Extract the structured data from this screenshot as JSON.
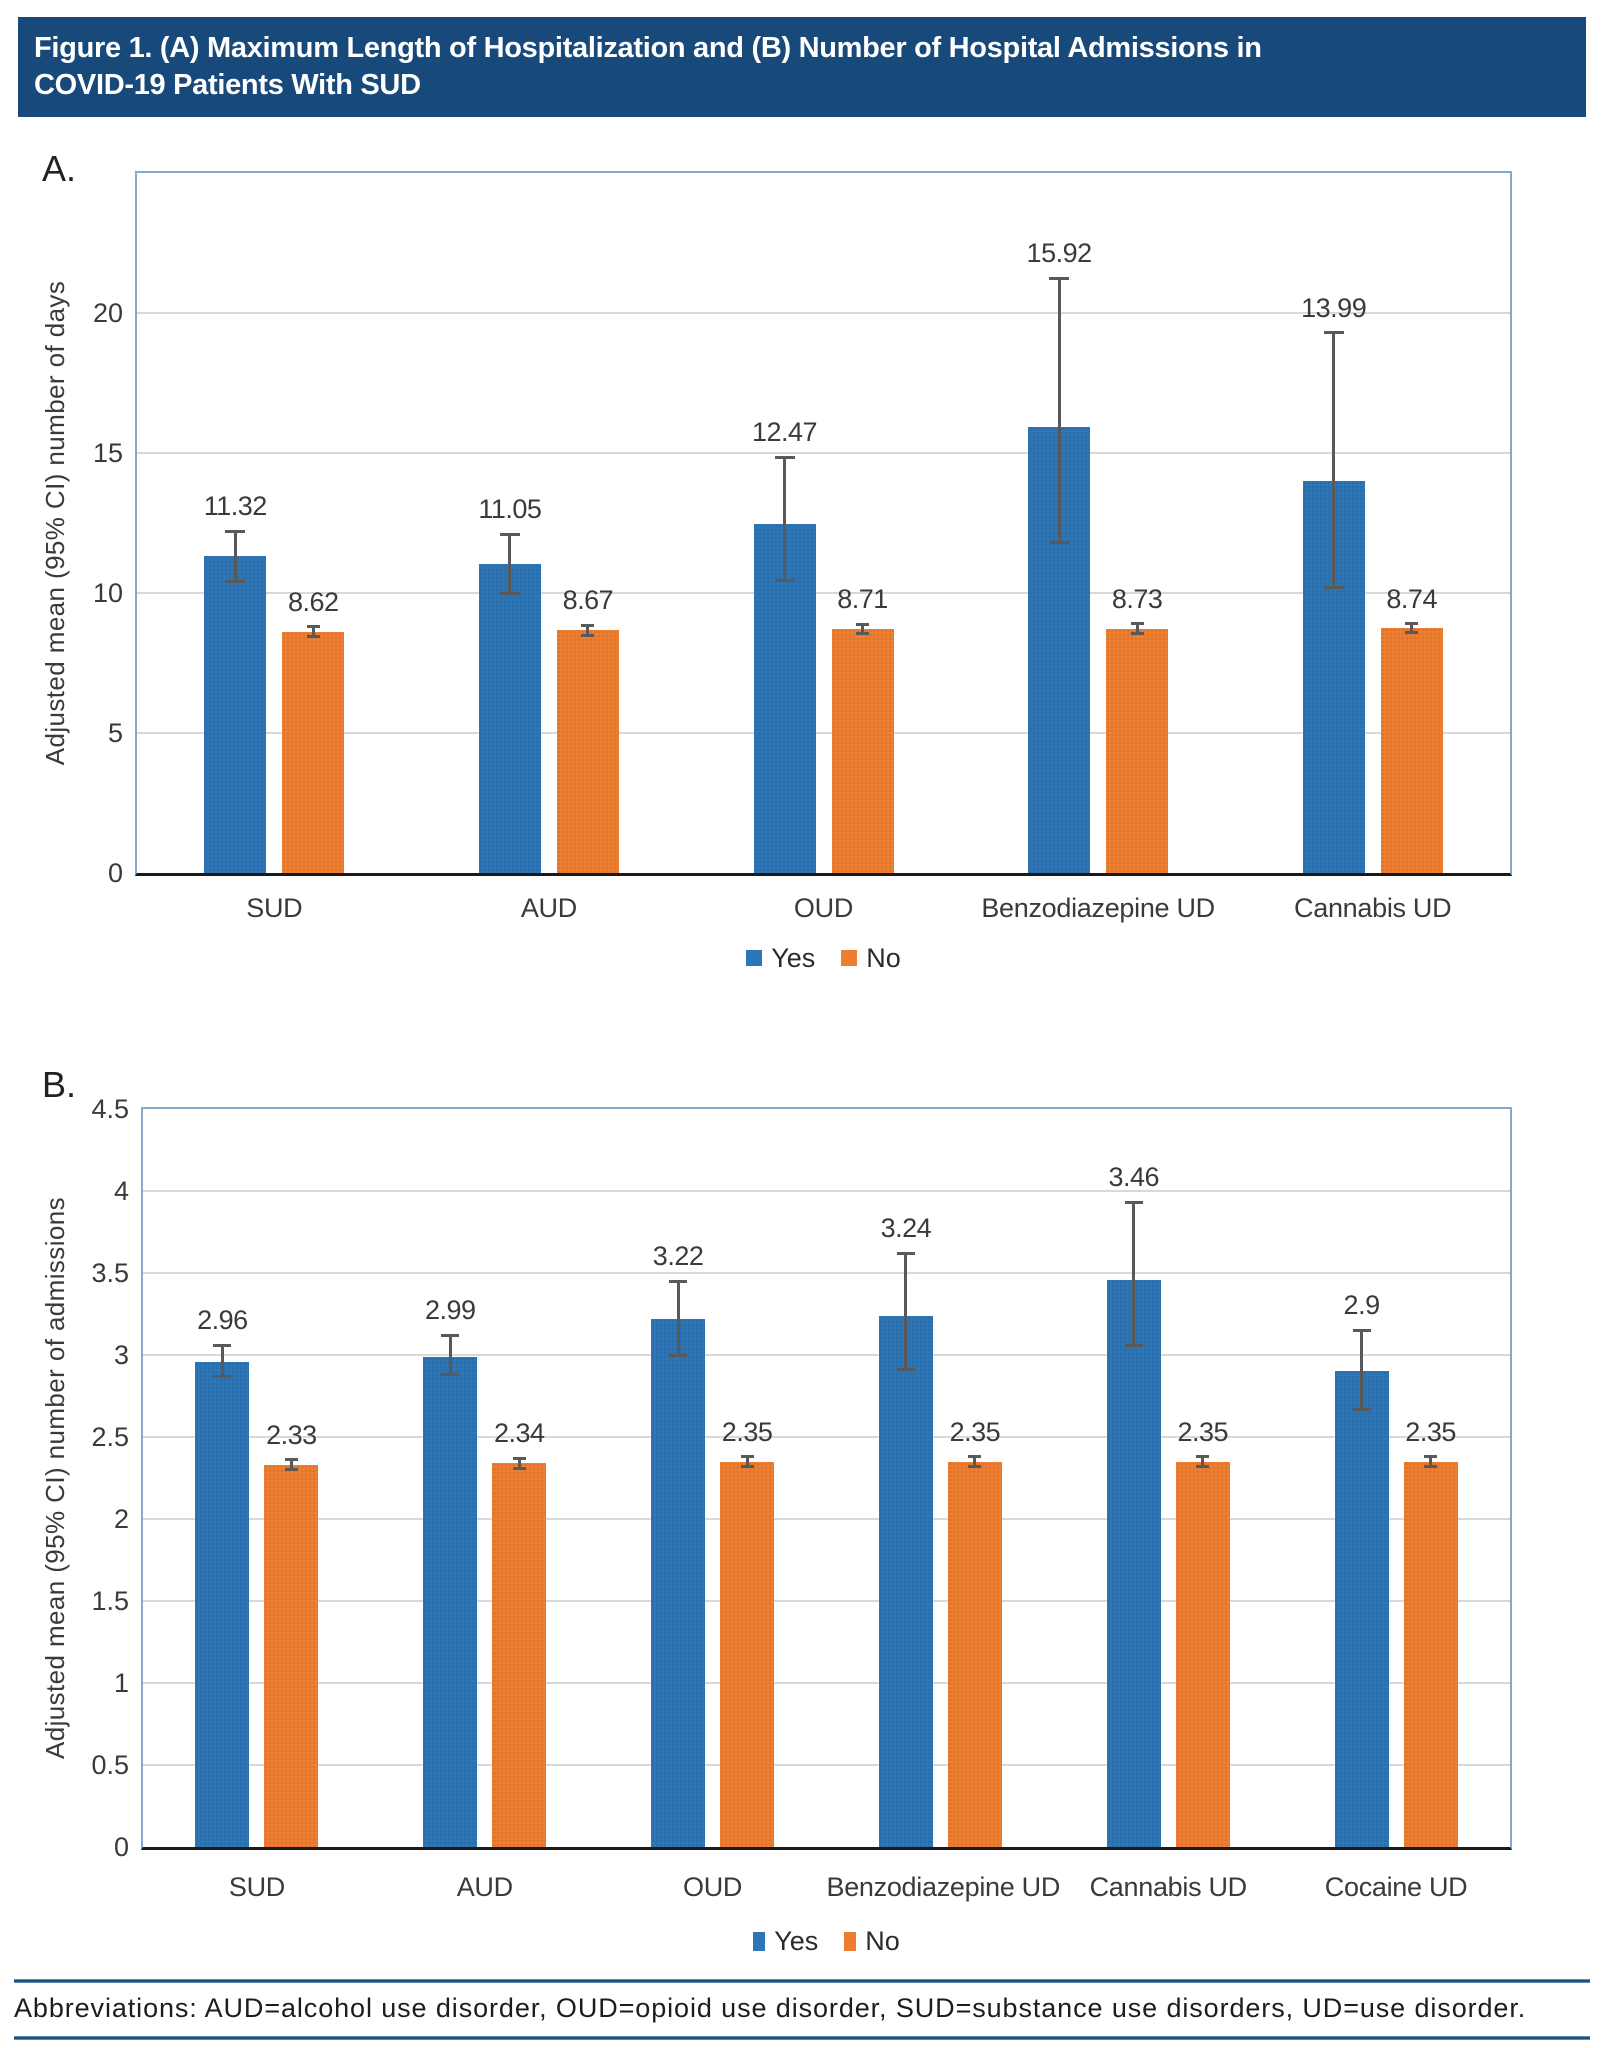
{
  "title": {
    "line1": "Figure 1. (A) Maximum Length of Hospitalization and (B) Number of Hospital Admissions in",
    "line2": "COVID-19 Patients With SUD"
  },
  "footer": {
    "abbreviations": "Abbreviations: AUD=alcohol use disorder, OUD=opioid use disorder, SUD=substance use disorders, UD=use disorder."
  },
  "colors": {
    "yes_bar": "#2E75B6",
    "no_bar": "#ED7D31",
    "title_bg": "#17497B",
    "gridline": "#D9D9D9",
    "plot_border": "#86A8CE",
    "axis_line": "#1A1A1A",
    "error_bar": "#595959",
    "divider_rule": "#1C527E"
  },
  "chart_data": [
    {
      "id": "A",
      "panel_label": "A.",
      "type": "bar",
      "title": "Maximum Length of Hospitalization",
      "xlabel": "",
      "ylabel": "Adjusted mean (95% CI) number of days",
      "ylim": [
        0,
        25
      ],
      "ytick_step": 5,
      "ytick_labels": [
        "0",
        "5",
        "10",
        "15",
        "20"
      ],
      "grid": true,
      "legend_position": "bottom",
      "categories": [
        "SUD",
        "AUD",
        "OUD",
        "Benzodiazepine UD",
        "Cannabis UD"
      ],
      "series": [
        {
          "name": "Yes",
          "color_key": "yes_bar",
          "values": [
            11.32,
            11.05,
            12.47,
            15.92,
            13.99
          ],
          "labels": [
            "11.32",
            "11.05",
            "12.47",
            "15.92",
            "13.99"
          ],
          "ci_low": [
            10.4,
            10.0,
            10.45,
            11.8,
            10.2
          ],
          "ci_high": [
            12.2,
            12.1,
            14.85,
            21.25,
            19.3
          ]
        },
        {
          "name": "No",
          "color_key": "no_bar",
          "values": [
            8.62,
            8.67,
            8.71,
            8.73,
            8.74
          ],
          "labels": [
            "8.62",
            "8.67",
            "8.71",
            "8.73",
            "8.74"
          ],
          "ci_low": [
            8.45,
            8.5,
            8.54,
            8.55,
            8.58
          ],
          "ci_high": [
            8.79,
            8.84,
            8.88,
            8.9,
            8.9
          ]
        }
      ]
    },
    {
      "id": "B",
      "panel_label": "B.",
      "type": "bar",
      "title": "Number of Hospital Admissions",
      "xlabel": "",
      "ylabel": "Adjusted mean (95% CI) number of admissions",
      "ylim": [
        0,
        4.5
      ],
      "ytick_step": 0.5,
      "ytick_labels": [
        "0",
        "0.5",
        "1",
        "1.5",
        "2",
        "2.5",
        "3",
        "3.5",
        "4",
        "4.5"
      ],
      "grid": true,
      "legend_position": "bottom",
      "categories": [
        "SUD",
        "AUD",
        "OUD",
        "Benzodiazepine UD",
        "Cannabis UD",
        "Cocaine UD"
      ],
      "series": [
        {
          "name": "Yes",
          "color_key": "yes_bar",
          "values": [
            2.96,
            2.99,
            3.22,
            3.24,
            3.46,
            2.9
          ],
          "labels": [
            "2.96",
            "2.99",
            "3.22",
            "3.24",
            "3.46",
            "2.9"
          ],
          "ci_low": [
            2.87,
            2.88,
            3.0,
            2.91,
            3.06,
            2.67
          ],
          "ci_high": [
            3.06,
            3.12,
            3.45,
            3.62,
            3.93,
            3.15
          ]
        },
        {
          "name": "No",
          "color_key": "no_bar",
          "values": [
            2.33,
            2.34,
            2.35,
            2.35,
            2.35,
            2.35
          ],
          "labels": [
            "2.33",
            "2.34",
            "2.35",
            "2.35",
            "2.35",
            "2.35"
          ],
          "ci_low": [
            2.3,
            2.31,
            2.32,
            2.32,
            2.32,
            2.32
          ],
          "ci_high": [
            2.36,
            2.37,
            2.38,
            2.38,
            2.38,
            2.38
          ]
        }
      ]
    }
  ]
}
